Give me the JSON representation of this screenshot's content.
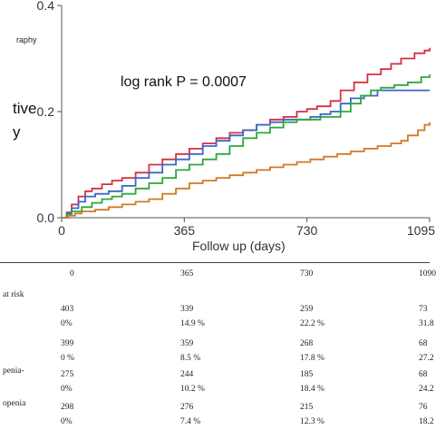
{
  "chart_data": {
    "type": "line",
    "annotation": "log rank P = 0.0007",
    "xlabel": "Follow up (days)",
    "ylabel": "",
    "xlim": [
      0,
      1095
    ],
    "ylim": [
      0,
      0.4
    ],
    "x_ticks": [
      "0",
      "365",
      "730",
      "1095"
    ],
    "y_ticks": [
      "0.0",
      "0.2",
      "0.4"
    ],
    "grid": false,
    "legend_fragment": "raphy",
    "side_label_fragments": [
      "tive",
      "y"
    ],
    "series": [
      {
        "color": "#d62f3f",
        "points": [
          [
            0,
            0
          ],
          [
            15,
            0.01
          ],
          [
            30,
            0.025
          ],
          [
            50,
            0.04
          ],
          [
            70,
            0.05
          ],
          [
            90,
            0.055
          ],
          [
            120,
            0.063
          ],
          [
            150,
            0.07
          ],
          [
            180,
            0.075
          ],
          [
            220,
            0.085
          ],
          [
            260,
            0.1
          ],
          [
            300,
            0.11
          ],
          [
            340,
            0.12
          ],
          [
            380,
            0.13
          ],
          [
            420,
            0.14
          ],
          [
            460,
            0.15
          ],
          [
            500,
            0.16
          ],
          [
            540,
            0.165
          ],
          [
            580,
            0.175
          ],
          [
            620,
            0.185
          ],
          [
            660,
            0.19
          ],
          [
            700,
            0.2
          ],
          [
            730,
            0.205
          ],
          [
            760,
            0.21
          ],
          [
            800,
            0.22
          ],
          [
            830,
            0.24
          ],
          [
            870,
            0.255
          ],
          [
            910,
            0.27
          ],
          [
            950,
            0.28
          ],
          [
            980,
            0.29
          ],
          [
            1010,
            0.3
          ],
          [
            1050,
            0.31
          ],
          [
            1080,
            0.315
          ],
          [
            1095,
            0.32
          ]
        ]
      },
      {
        "color": "#3a67c9",
        "points": [
          [
            0,
            0
          ],
          [
            15,
            0.008
          ],
          [
            30,
            0.018
          ],
          [
            50,
            0.03
          ],
          [
            70,
            0.04
          ],
          [
            100,
            0.045
          ],
          [
            140,
            0.05
          ],
          [
            180,
            0.06
          ],
          [
            220,
            0.075
          ],
          [
            260,
            0.085
          ],
          [
            300,
            0.1
          ],
          [
            340,
            0.11
          ],
          [
            380,
            0.12
          ],
          [
            420,
            0.135
          ],
          [
            460,
            0.145
          ],
          [
            500,
            0.155
          ],
          [
            540,
            0.165
          ],
          [
            580,
            0.175
          ],
          [
            620,
            0.18
          ],
          [
            660,
            0.185
          ],
          [
            700,
            0.185
          ],
          [
            740,
            0.19
          ],
          [
            770,
            0.195
          ],
          [
            800,
            0.2
          ],
          [
            830,
            0.215
          ],
          [
            860,
            0.225
          ],
          [
            900,
            0.23
          ],
          [
            940,
            0.24
          ],
          [
            980,
            0.24
          ],
          [
            1020,
            0.24
          ],
          [
            1060,
            0.24
          ],
          [
            1095,
            0.24
          ]
        ]
      },
      {
        "color": "#2ea73a",
        "points": [
          [
            0,
            0
          ],
          [
            15,
            0.005
          ],
          [
            30,
            0.012
          ],
          [
            60,
            0.02
          ],
          [
            90,
            0.028
          ],
          [
            120,
            0.035
          ],
          [
            150,
            0.04
          ],
          [
            180,
            0.045
          ],
          [
            220,
            0.055
          ],
          [
            260,
            0.065
          ],
          [
            300,
            0.075
          ],
          [
            340,
            0.09
          ],
          [
            380,
            0.1
          ],
          [
            420,
            0.11
          ],
          [
            460,
            0.12
          ],
          [
            500,
            0.135
          ],
          [
            540,
            0.15
          ],
          [
            580,
            0.16
          ],
          [
            620,
            0.17
          ],
          [
            660,
            0.18
          ],
          [
            700,
            0.185
          ],
          [
            740,
            0.185
          ],
          [
            770,
            0.19
          ],
          [
            800,
            0.19
          ],
          [
            830,
            0.2
          ],
          [
            860,
            0.215
          ],
          [
            890,
            0.23
          ],
          [
            920,
            0.24
          ],
          [
            950,
            0.245
          ],
          [
            990,
            0.25
          ],
          [
            1030,
            0.255
          ],
          [
            1070,
            0.265
          ],
          [
            1095,
            0.27
          ]
        ]
      },
      {
        "color": "#d07a26",
        "points": [
          [
            0,
            0
          ],
          [
            20,
            0.004
          ],
          [
            40,
            0.008
          ],
          [
            60,
            0.012
          ],
          [
            100,
            0.015
          ],
          [
            140,
            0.02
          ],
          [
            180,
            0.025
          ],
          [
            220,
            0.03
          ],
          [
            260,
            0.035
          ],
          [
            300,
            0.045
          ],
          [
            340,
            0.055
          ],
          [
            380,
            0.065
          ],
          [
            420,
            0.07
          ],
          [
            460,
            0.075
          ],
          [
            500,
            0.08
          ],
          [
            540,
            0.085
          ],
          [
            580,
            0.09
          ],
          [
            620,
            0.095
          ],
          [
            660,
            0.1
          ],
          [
            700,
            0.105
          ],
          [
            740,
            0.11
          ],
          [
            780,
            0.115
          ],
          [
            820,
            0.12
          ],
          [
            860,
            0.125
          ],
          [
            900,
            0.13
          ],
          [
            940,
            0.135
          ],
          [
            980,
            0.14
          ],
          [
            1010,
            0.145
          ],
          [
            1030,
            0.155
          ],
          [
            1060,
            0.165
          ],
          [
            1080,
            0.175
          ],
          [
            1095,
            0.18
          ]
        ]
      }
    ]
  },
  "risk_table": {
    "header": [
      "0",
      "365",
      "730",
      "1090"
    ],
    "title_fragment": "at risk",
    "rows": [
      {
        "label": "",
        "counts": [
          "403",
          "339",
          "259",
          "73"
        ],
        "pcts": [
          "0%",
          "14.9  %",
          "22.2  %",
          "31.8"
        ]
      },
      {
        "label": "",
        "counts": [
          "399",
          "359",
          "268",
          "68"
        ],
        "pcts": [
          "0 %",
          "8.5  %",
          "17.8  %",
          "27.2"
        ]
      },
      {
        "label": "penia-",
        "counts": [
          "275",
          "244",
          "185",
          "68"
        ],
        "pcts": [
          "0%",
          "10.2  %",
          "18.4  %",
          "24.2"
        ]
      },
      {
        "label": "openia",
        "counts": [
          "298",
          "276",
          "215",
          "76"
        ],
        "pcts": [
          "0%",
          "7.4  %",
          "12.3  %",
          "18.2"
        ]
      }
    ]
  }
}
